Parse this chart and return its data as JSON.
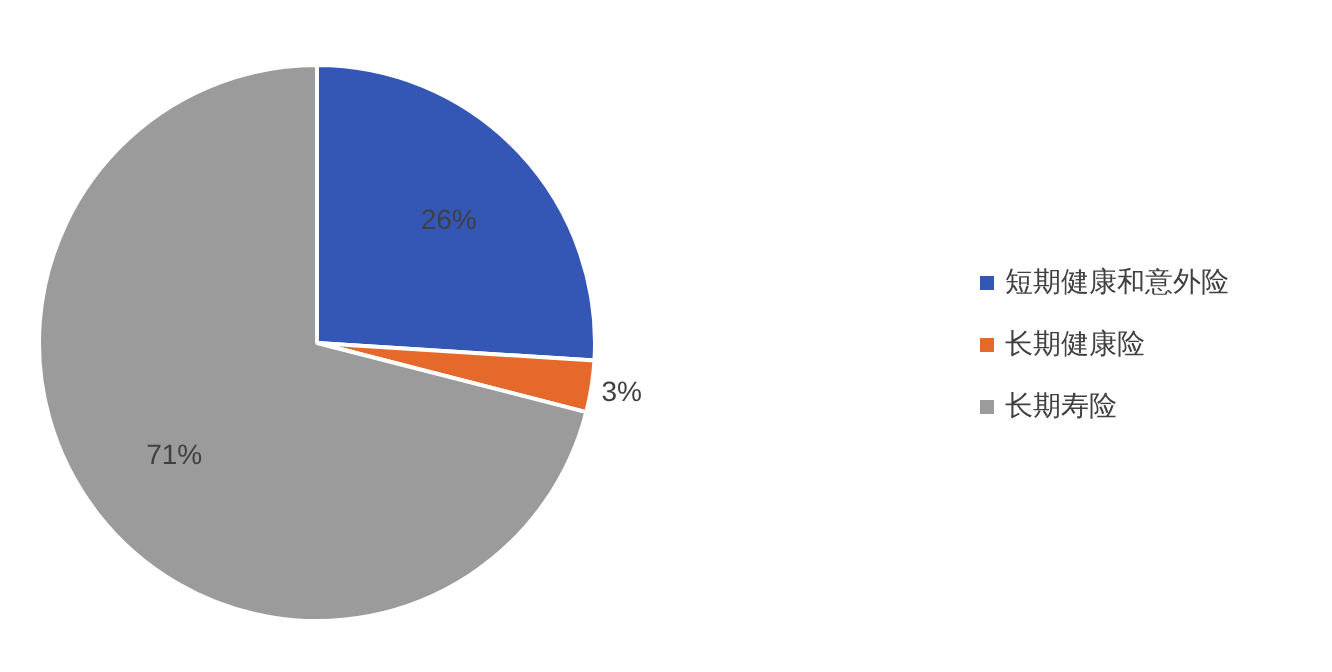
{
  "chart_data": {
    "type": "pie",
    "categories": [
      "短期健康和意外险",
      "长期健康险",
      "长期寿险"
    ],
    "values": [
      26,
      3,
      71
    ],
    "colors": [
      "#3457b5",
      "#e5692a",
      "#9b9b9b"
    ],
    "value_labels": [
      "26%",
      "3%",
      "71%"
    ],
    "legend": "right"
  }
}
